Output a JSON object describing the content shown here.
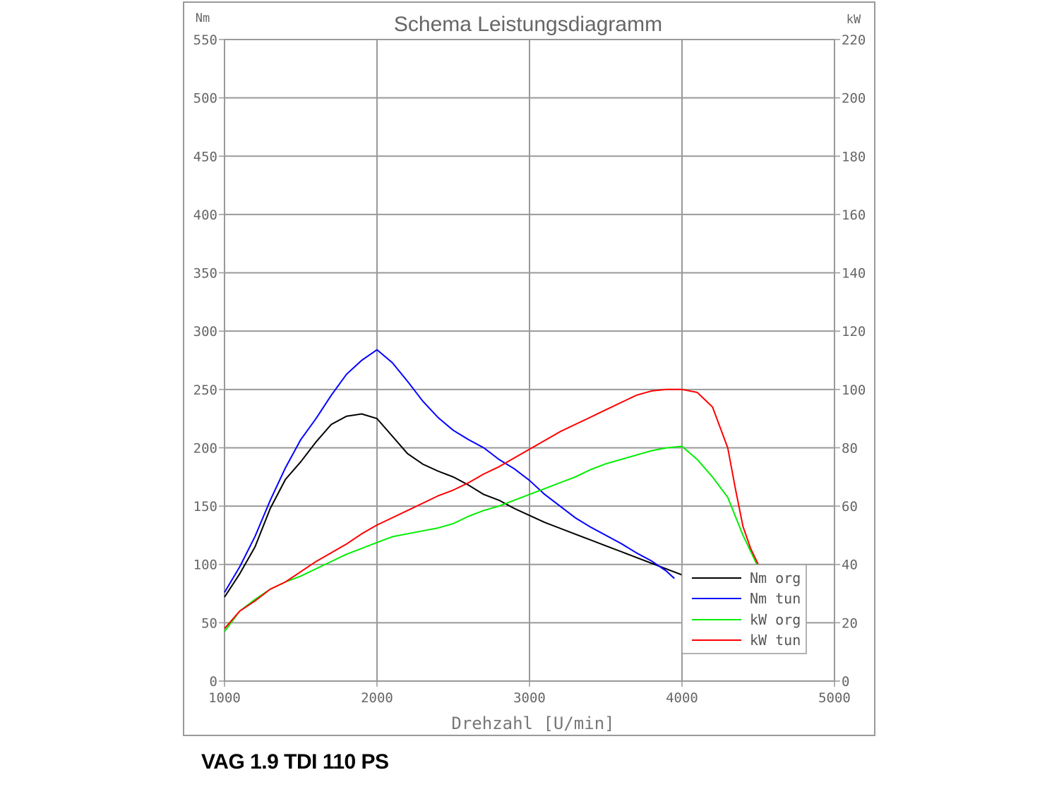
{
  "caption": "VAG 1.9 TDI 110 PS",
  "chart_data": {
    "type": "line",
    "title": "Schema Leistungsdiagramm",
    "xlabel": "Drehzahl [U/min]",
    "ylabel_left": "Nm",
    "ylabel_right": "kW",
    "xlim": [
      1000,
      5000
    ],
    "ylim_left": [
      0,
      550
    ],
    "ylim_right": [
      0,
      220
    ],
    "x_ticks": [
      1000,
      2000,
      3000,
      4000,
      5000
    ],
    "y_ticks_left": [
      0,
      50,
      100,
      150,
      200,
      250,
      300,
      350,
      400,
      450,
      500,
      550
    ],
    "y_ticks_right": [
      0,
      20,
      40,
      60,
      80,
      100,
      120,
      140,
      160,
      180,
      200,
      220
    ],
    "grid": true,
    "legend_position": "bottom-right",
    "series": [
      {
        "name": "Nm org",
        "axis": "left",
        "color": "#000000",
        "points": [
          [
            1000,
            72
          ],
          [
            1100,
            92
          ],
          [
            1200,
            115
          ],
          [
            1300,
            148
          ],
          [
            1400,
            173
          ],
          [
            1500,
            188
          ],
          [
            1600,
            205
          ],
          [
            1700,
            220
          ],
          [
            1800,
            227
          ],
          [
            1900,
            229
          ],
          [
            2000,
            225
          ],
          [
            2100,
            210
          ],
          [
            2200,
            195
          ],
          [
            2300,
            186
          ],
          [
            2400,
            180
          ],
          [
            2500,
            175
          ],
          [
            2600,
            168
          ],
          [
            2700,
            160
          ],
          [
            2800,
            155
          ],
          [
            2900,
            148
          ],
          [
            3000,
            142
          ],
          [
            3100,
            136
          ],
          [
            3200,
            131
          ],
          [
            3300,
            126
          ],
          [
            3400,
            121
          ],
          [
            3500,
            116
          ],
          [
            3600,
            111
          ],
          [
            3700,
            106
          ],
          [
            3800,
            101
          ],
          [
            3900,
            96
          ],
          [
            4000,
            91
          ]
        ]
      },
      {
        "name": "Nm tun",
        "axis": "left",
        "color": "#0000ff",
        "points": [
          [
            1000,
            76
          ],
          [
            1100,
            98
          ],
          [
            1200,
            124
          ],
          [
            1300,
            155
          ],
          [
            1400,
            183
          ],
          [
            1500,
            207
          ],
          [
            1600,
            225
          ],
          [
            1700,
            245
          ],
          [
            1800,
            263
          ],
          [
            1900,
            275
          ],
          [
            2000,
            284
          ],
          [
            2100,
            273
          ],
          [
            2200,
            257
          ],
          [
            2300,
            240
          ],
          [
            2400,
            226
          ],
          [
            2500,
            215
          ],
          [
            2600,
            207
          ],
          [
            2700,
            200
          ],
          [
            2800,
            190
          ],
          [
            2900,
            182
          ],
          [
            3000,
            172
          ],
          [
            3100,
            160
          ],
          [
            3200,
            150
          ],
          [
            3300,
            140
          ],
          [
            3400,
            132
          ],
          [
            3500,
            125
          ],
          [
            3600,
            118
          ],
          [
            3700,
            110
          ],
          [
            3800,
            103
          ],
          [
            3900,
            94
          ],
          [
            3950,
            88
          ]
        ]
      },
      {
        "name": "kW org",
        "axis": "right",
        "color": "#00ee00",
        "points": [
          [
            1000,
            17
          ],
          [
            1100,
            24
          ],
          [
            1200,
            28
          ],
          [
            1300,
            31.5
          ],
          [
            1400,
            34
          ],
          [
            1500,
            36
          ],
          [
            1600,
            38.5
          ],
          [
            1700,
            41
          ],
          [
            1800,
            43.5
          ],
          [
            1900,
            45.5
          ],
          [
            2000,
            47.5
          ],
          [
            2100,
            49.5
          ],
          [
            2200,
            50.5
          ],
          [
            2300,
            51.5
          ],
          [
            2400,
            52.5
          ],
          [
            2500,
            54
          ],
          [
            2600,
            56.5
          ],
          [
            2700,
            58.5
          ],
          [
            2800,
            60
          ],
          [
            2900,
            62
          ],
          [
            3000,
            64
          ],
          [
            3100,
            66
          ],
          [
            3200,
            68
          ],
          [
            3300,
            70
          ],
          [
            3400,
            72.5
          ],
          [
            3500,
            74.5
          ],
          [
            3600,
            76
          ],
          [
            3700,
            77.5
          ],
          [
            3800,
            79
          ],
          [
            3900,
            80
          ],
          [
            4000,
            80.5
          ],
          [
            4100,
            76
          ],
          [
            4200,
            70
          ],
          [
            4300,
            63
          ],
          [
            4400,
            50
          ],
          [
            4500,
            39
          ]
        ]
      },
      {
        "name": "kW tun",
        "axis": "right",
        "color": "#ff0000",
        "points": [
          [
            1000,
            18
          ],
          [
            1100,
            24
          ],
          [
            1200,
            27.5
          ],
          [
            1300,
            31.5
          ],
          [
            1400,
            34
          ],
          [
            1500,
            37.5
          ],
          [
            1600,
            41
          ],
          [
            1700,
            44
          ],
          [
            1800,
            47
          ],
          [
            1900,
            50.5
          ],
          [
            2000,
            53.5
          ],
          [
            2100,
            56
          ],
          [
            2200,
            58.5
          ],
          [
            2300,
            61
          ],
          [
            2400,
            63.5
          ],
          [
            2500,
            65.5
          ],
          [
            2600,
            68
          ],
          [
            2700,
            71
          ],
          [
            2800,
            73.5
          ],
          [
            2900,
            76.5
          ],
          [
            3000,
            79.5
          ],
          [
            3100,
            82.5
          ],
          [
            3200,
            85.5
          ],
          [
            3300,
            88
          ],
          [
            3400,
            90.5
          ],
          [
            3500,
            93
          ],
          [
            3600,
            95.5
          ],
          [
            3700,
            98
          ],
          [
            3800,
            99.5
          ],
          [
            3900,
            100
          ],
          [
            4000,
            100
          ],
          [
            4100,
            99
          ],
          [
            4200,
            94
          ],
          [
            4300,
            80
          ],
          [
            4350,
            66
          ],
          [
            4400,
            53
          ],
          [
            4450,
            45.5
          ],
          [
            4500,
            40
          ]
        ]
      }
    ]
  }
}
